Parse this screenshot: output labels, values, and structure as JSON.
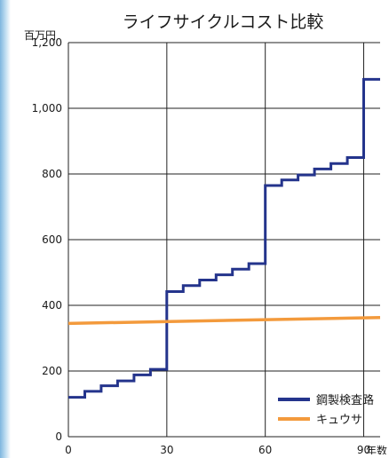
{
  "chart_data": {
    "type": "line",
    "step": true,
    "title": "ライフサイクルコスト比較",
    "y_unit_label": "百万円",
    "x_unit_label": "年数",
    "xlim": [
      0,
      95
    ],
    "ylim": [
      0,
      1200
    ],
    "x_ticks": [
      0,
      30,
      60,
      90
    ],
    "x_tick_labels": [
      "0",
      "30",
      "60",
      "90"
    ],
    "y_ticks": [
      0,
      200,
      400,
      600,
      800,
      1000,
      1200
    ],
    "y_tick_labels": [
      "0",
      "200",
      "400",
      "600",
      "800",
      "1,000",
      "1,200"
    ],
    "grid": {
      "vertical": true,
      "horizontal": true
    },
    "legend_position": "bottom-right",
    "series": [
      {
        "name": "鋼製検査路",
        "color": "#24348c",
        "x": [
          0,
          5,
          5,
          10,
          10,
          15,
          15,
          20,
          20,
          25,
          25,
          30,
          30,
          35,
          35,
          40,
          40,
          45,
          45,
          50,
          50,
          55,
          55,
          60,
          60,
          65,
          65,
          70,
          70,
          75,
          75,
          80,
          80,
          85,
          85,
          90,
          90,
          95
        ],
        "y": [
          120,
          120,
          138,
          138,
          155,
          155,
          170,
          170,
          188,
          188,
          205,
          205,
          442,
          442,
          460,
          460,
          477,
          477,
          493,
          493,
          510,
          510,
          527,
          527,
          765,
          765,
          782,
          782,
          797,
          797,
          815,
          815,
          832,
          832,
          850,
          850,
          1088,
          1088
        ]
      },
      {
        "name": "キュウサ",
        "color": "#f39a3c",
        "x": [
          0,
          95
        ],
        "y": [
          345,
          363
        ]
      }
    ]
  }
}
